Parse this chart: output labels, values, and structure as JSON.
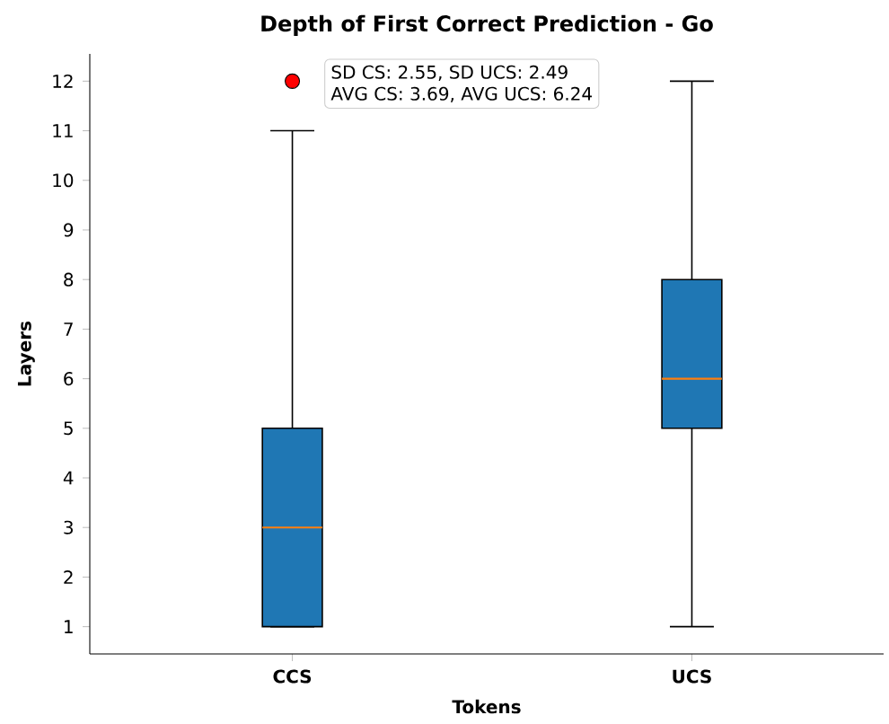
{
  "chart_data": {
    "type": "box",
    "title": "Depth of First Correct Prediction - Go",
    "xlabel": "Tokens",
    "ylabel": "Layers",
    "categories": [
      "CCS",
      "UCS"
    ],
    "series": [
      {
        "color": "#1f77b4",
        "boxes": [
          {
            "low": 1,
            "q1": 1,
            "median": 3,
            "q3": 5,
            "high": 11,
            "outliers": [
              12
            ]
          },
          {
            "low": 1,
            "q1": 5,
            "median": 6,
            "q3": 8,
            "high": 12
          }
        ]
      }
    ],
    "ylim": [
      0.45,
      12.55
    ],
    "yticks": [
      1,
      2,
      3,
      4,
      5,
      6,
      7,
      8,
      9,
      10,
      11,
      12
    ],
    "annotations": [
      "SD CS: 2.55, SD UCS: 2.49",
      "AVG CS: 3.69, AVG UCS: 6.24"
    ]
  }
}
